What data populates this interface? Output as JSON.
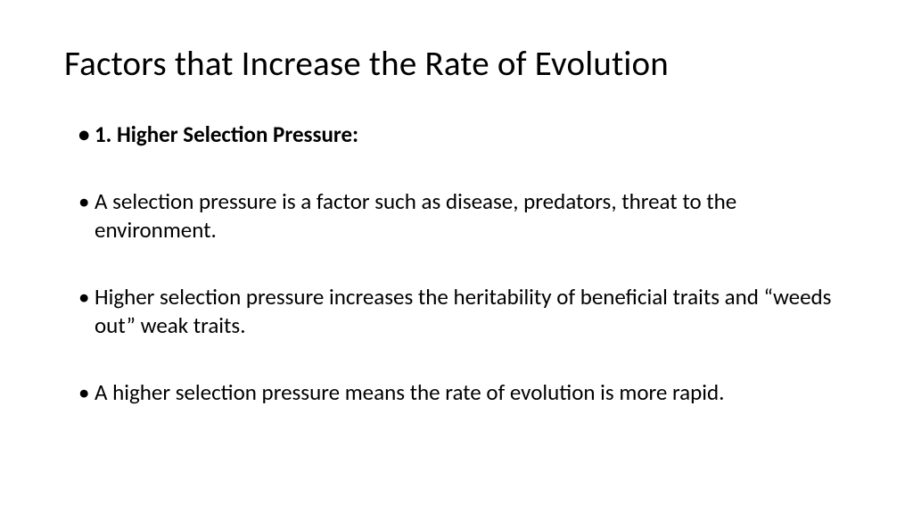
{
  "slide": {
    "title": "Factors that Increase the Rate of Evolution",
    "bullets": [
      {
        "text": "1. Higher Selection Pressure:",
        "bold": true
      },
      {
        "text": "A selection pressure is a factor such as disease, predators, threat to the environment.",
        "bold": false
      },
      {
        "text": "Higher selection pressure increases the heritability of beneficial traits and “weeds out” weak traits.",
        "bold": false
      },
      {
        "text": "A higher selection pressure means the rate of evolution is more rapid.",
        "bold": false
      }
    ],
    "background_color": "#ffffff",
    "text_color": "#000000",
    "title_fontsize": 39,
    "body_fontsize": 25
  }
}
